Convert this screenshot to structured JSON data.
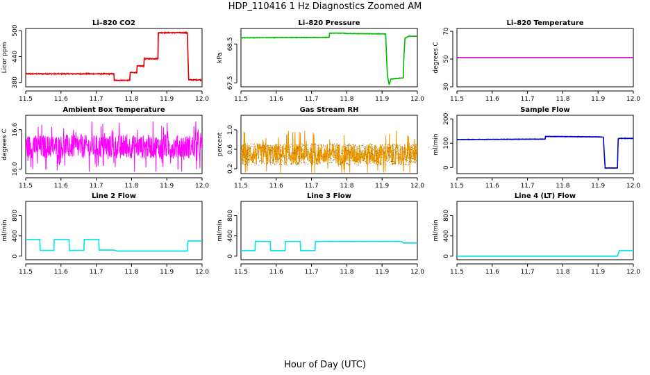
{
  "figure": {
    "title": "HDP_110416  1 Hz Diagnostics Zoomed AM",
    "xlabel": "Hour of Day (UTC)"
  },
  "chart_data": [
    {
      "id": "co2",
      "type": "line",
      "title": "Li–820 CO2",
      "ylabel": "Licor ppm",
      "xlim": [
        11.5,
        12.0
      ],
      "ylim": [
        370,
        505
      ],
      "yticks": [
        380,
        440,
        500
      ],
      "ytick_labels": [
        "380",
        "440",
        "500"
      ],
      "xticks": [
        11.5,
        11.6,
        11.7,
        11.8,
        11.9,
        12.0
      ],
      "series": [
        {
          "color": "#dd0000",
          "noise": 1.5,
          "x": [
            11.5,
            11.75,
            11.751,
            11.795,
            11.796,
            11.815,
            11.816,
            11.835,
            11.836,
            11.875,
            11.876,
            11.958,
            11.962,
            11.998
          ],
          "y": [
            400,
            400,
            385,
            385,
            403,
            403,
            418,
            418,
            435,
            435,
            495,
            495,
            386,
            386
          ]
        }
      ]
    },
    {
      "id": "pressure",
      "type": "line",
      "title": "Li–820 Pressure",
      "ylabel": "kPa",
      "xlim": [
        11.5,
        12.0
      ],
      "ylim": [
        67.4,
        68.9
      ],
      "yticks": [
        67.5,
        68.5
      ],
      "ytick_labels": [
        "67.5",
        "68.5"
      ],
      "xticks": [
        11.5,
        11.6,
        11.7,
        11.8,
        11.9,
        12.0
      ],
      "series": [
        {
          "color": "#00bb00",
          "noise": 0.01,
          "x": [
            11.5,
            11.75,
            11.751,
            11.79,
            11.8,
            11.91,
            11.915,
            11.92,
            11.925,
            11.96,
            11.962,
            11.965,
            11.975,
            12.0
          ],
          "y": [
            68.66,
            68.67,
            68.78,
            68.78,
            68.77,
            68.76,
            67.7,
            67.45,
            67.6,
            67.63,
            68.2,
            68.65,
            68.7,
            68.7
          ]
        }
      ]
    },
    {
      "id": "licor-temp",
      "type": "line",
      "title": "Li–820 Temperature",
      "ylabel": "degrees C",
      "xlim": [
        11.5,
        12.0
      ],
      "ylim": [
        30,
        72
      ],
      "yticks": [
        30,
        50,
        70
      ],
      "ytick_labels": [
        "30",
        "50",
        "70"
      ],
      "xticks": [
        11.5,
        11.6,
        11.7,
        11.8,
        11.9,
        12.0
      ],
      "series": [
        {
          "color": "#cc00cc",
          "noise": 0,
          "x": [
            11.5,
            12.0
          ],
          "y": [
            51,
            51
          ]
        }
      ]
    },
    {
      "id": "box-temp",
      "type": "line",
      "title": "Ambient Box Temperature",
      "ylabel": "degrees C",
      "xlim": [
        11.5,
        12.0
      ],
      "ylim": [
        15.93,
        16.82
      ],
      "yticks": [
        16.0,
        16.6
      ],
      "ytick_labels": [
        "16.0",
        "16.6"
      ],
      "xticks": [
        11.5,
        11.6,
        11.7,
        11.8,
        11.9,
        12.0
      ],
      "series": [
        {
          "color": "#ff00ff",
          "noise_band": [
            15.96,
            16.76
          ],
          "noise_center": 16.34,
          "noise_spread": 0.18,
          "x": [
            11.5,
            12.0
          ],
          "y": [
            16.34,
            16.34
          ]
        }
      ]
    },
    {
      "id": "rh",
      "type": "scatter",
      "title": "Gas Stream RH",
      "ylabel": "percent",
      "xlim": [
        11.5,
        12.0
      ],
      "ylim": [
        0.1,
        1.3
      ],
      "yticks": [
        0.2,
        0.6,
        1.0
      ],
      "ytick_labels": [
        "0.2",
        "0.6",
        "1.0"
      ],
      "xticks": [
        11.5,
        11.6,
        11.7,
        11.8,
        11.9,
        12.0
      ],
      "series": [
        {
          "color": "#ee9900",
          "point_color": "#996600",
          "noise_band": [
            0.12,
            1.2
          ],
          "noise_center": 0.5,
          "noise_spread": 0.22,
          "x": [
            11.5,
            12.0
          ],
          "y": [
            0.5,
            0.5
          ]
        }
      ]
    },
    {
      "id": "sample-flow",
      "type": "line",
      "title": "Sample Flow",
      "ylabel": "ml/min",
      "xlim": [
        11.5,
        12.0
      ],
      "ylim": [
        -25,
        215
      ],
      "yticks": [
        0,
        100,
        200
      ],
      "ytick_labels": [
        "0",
        "100",
        "200"
      ],
      "xticks": [
        11.5,
        11.6,
        11.7,
        11.8,
        11.9,
        12.0
      ],
      "series": [
        {
          "color": "#0000cc",
          "noise": 1.5,
          "x": [
            11.5,
            11.75,
            11.751,
            11.9,
            11.915,
            11.92,
            11.955,
            11.957,
            11.96,
            12.0
          ],
          "y": [
            115,
            117,
            128,
            126,
            125,
            -2,
            -2,
            118,
            120,
            120
          ]
        }
      ]
    },
    {
      "id": "line2",
      "type": "line",
      "title": "Line 2 Flow",
      "ylabel": "ml/min",
      "xlim": [
        11.5,
        12.0
      ],
      "ylim": [
        -70,
        1080
      ],
      "yticks": [
        0,
        400,
        800
      ],
      "ytick_labels": [
        "0",
        "400",
        "800"
      ],
      "xticks": [
        11.5,
        11.6,
        11.7,
        11.8,
        11.9,
        12.0
      ],
      "series": [
        {
          "color": "#00e5ee",
          "noise": 3,
          "x": [
            11.5,
            11.54,
            11.541,
            11.58,
            11.581,
            11.623,
            11.624,
            11.665,
            11.666,
            11.707,
            11.708,
            11.75,
            11.76,
            11.958,
            11.96,
            12.0
          ],
          "y": [
            330,
            330,
            115,
            115,
            330,
            330,
            115,
            115,
            330,
            330,
            120,
            120,
            100,
            100,
            300,
            300
          ]
        }
      ]
    },
    {
      "id": "line3",
      "type": "line",
      "title": "Line 3 Flow",
      "ylabel": "ml/min",
      "xlim": [
        11.5,
        12.0
      ],
      "ylim": [
        -70,
        1080
      ],
      "yticks": [
        0,
        400,
        800
      ],
      "ytick_labels": [
        "0",
        "400",
        "800"
      ],
      "xticks": [
        11.5,
        11.6,
        11.7,
        11.8,
        11.9,
        12.0
      ],
      "series": [
        {
          "color": "#00e5ee",
          "noise": 3,
          "x": [
            11.5,
            11.54,
            11.541,
            11.583,
            11.584,
            11.625,
            11.626,
            11.668,
            11.669,
            11.71,
            11.711,
            11.955,
            11.96,
            12.0
          ],
          "y": [
            110,
            110,
            290,
            290,
            110,
            110,
            290,
            290,
            110,
            110,
            290,
            290,
            260,
            260
          ]
        }
      ]
    },
    {
      "id": "line4",
      "type": "line",
      "title": "Line 4 (LT) Flow",
      "ylabel": "ml/min",
      "xlim": [
        11.5,
        12.0
      ],
      "ylim": [
        -70,
        1080
      ],
      "yticks": [
        0,
        400,
        800
      ],
      "ytick_labels": [
        "0",
        "400",
        "800"
      ],
      "xticks": [
        11.5,
        11.6,
        11.7,
        11.8,
        11.9,
        12.0
      ],
      "series": [
        {
          "color": "#00e5ee",
          "noise": 0,
          "x": [
            11.5,
            11.955,
            11.96,
            12.0
          ],
          "y": [
            0,
            0,
            110,
            110
          ]
        }
      ]
    }
  ]
}
